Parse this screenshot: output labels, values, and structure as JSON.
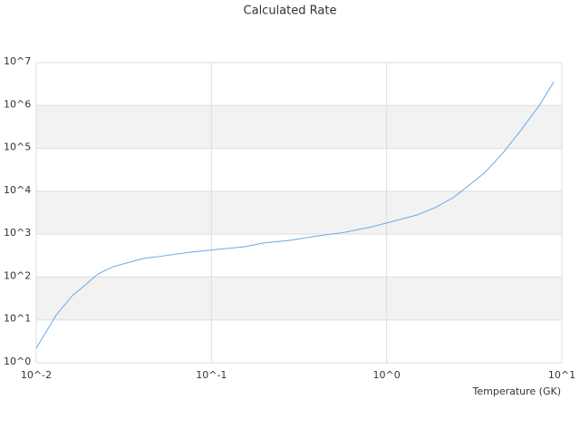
{
  "chart_data": {
    "type": "line",
    "title": "Calculated Rate",
    "x_label": "Temperature (GK)",
    "log_x": true,
    "log_y": true,
    "grid": true,
    "xlim": [
      0.01,
      10
    ],
    "ylim": [
      1,
      10000000
    ],
    "xticks": [
      {
        "value": 0.01,
        "label": "10^-2"
      },
      {
        "value": 0.1,
        "label": "10^-1"
      },
      {
        "value": 1,
        "label": "10^0"
      },
      {
        "value": 10,
        "label": "10^1"
      }
    ],
    "yticks": [
      {
        "value": 1,
        "label": "10^0"
      },
      {
        "value": 10,
        "label": "10^1"
      },
      {
        "value": 100,
        "label": "10^2"
      },
      {
        "value": 1000,
        "label": "10^3"
      },
      {
        "value": 10000,
        "label": "10^4"
      },
      {
        "value": 100000,
        "label": "10^5"
      },
      {
        "value": 1000000,
        "label": "10^6"
      },
      {
        "value": 10000000,
        "label": "10^7"
      }
    ],
    "series": [
      {
        "color": "#6aa8e8",
        "x": [
          0.01,
          0.0113,
          0.013,
          0.0161,
          0.0186,
          0.0225,
          0.0275,
          0.0329,
          0.0408,
          0.053,
          0.0758,
          0.108,
          0.155,
          0.196,
          0.281,
          0.402,
          0.574,
          0.82,
          1.04,
          1.49,
          1.89,
          2.4,
          2.87,
          3.64,
          4.62,
          5.86,
          7.43,
          9.0
        ],
        "values": [
          2.2,
          5,
          13,
          37,
          60,
          118,
          174,
          213,
          270,
          310,
          380,
          440,
          510,
          620,
          715,
          910,
          1100,
          1480,
          1900,
          2800,
          4150,
          7100,
          12600,
          27500,
          79000,
          270000,
          1000000,
          3550000
        ]
      }
    ]
  }
}
